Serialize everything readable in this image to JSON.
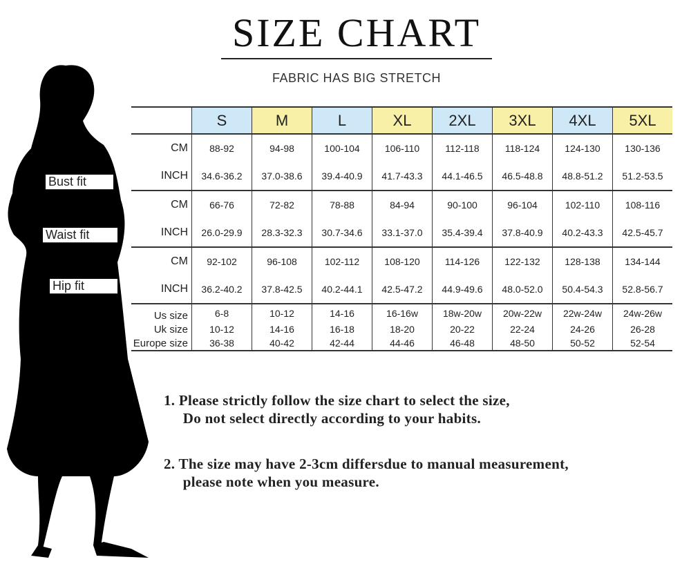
{
  "title": "SIZE CHART",
  "subtitle": "FABRIC HAS BIG STRETCH",
  "fit_labels": {
    "bust": "Bust fit",
    "waist": "Waist fit",
    "hip": "Hip fit"
  },
  "sizes": [
    "S",
    "M",
    "L",
    "XL",
    "2XL",
    "3XL",
    "4XL",
    "5XL"
  ],
  "header_colors": {
    "blue": "#cfe8f8",
    "yellow": "#f7f0a6"
  },
  "rows": [
    {
      "label": "CM",
      "values": [
        "88-92",
        "94-98",
        "100-104",
        "106-110",
        "112-118",
        "118-124",
        "124-130",
        "130-136"
      ]
    },
    {
      "label": "INCH",
      "values": [
        "34.6-36.2",
        "37.0-38.6",
        "39.4-40.9",
        "41.7-43.3",
        "44.1-46.5",
        "46.5-48.8",
        "48.8-51.2",
        "51.2-53.5"
      ]
    },
    {
      "label": "CM",
      "values": [
        "66-76",
        "72-82",
        "78-88",
        "84-94",
        "90-100",
        "96-104",
        "102-110",
        "108-116"
      ]
    },
    {
      "label": "INCH",
      "values": [
        "26.0-29.9",
        "28.3-32.3",
        "30.7-34.6",
        "33.1-37.0",
        "35.4-39.4",
        "37.8-40.9",
        "40.2-43.3",
        "42.5-45.7"
      ]
    },
    {
      "label": "CM",
      "values": [
        "92-102",
        "96-108",
        "102-112",
        "108-120",
        "114-126",
        "122-132",
        "128-138",
        "134-144"
      ]
    },
    {
      "label": "INCH",
      "values": [
        "36.2-40.2",
        "37.8-42.5",
        "40.2-44.1",
        "42.5-47.2",
        "44.9-49.6",
        "48.0-52.0",
        "50.4-54.3",
        "52.8-56.7"
      ]
    },
    {
      "label": "Us size",
      "values": [
        "6-8",
        "10-12",
        "14-16",
        "16-16w",
        "18w-20w",
        "20w-22w",
        "22w-24w",
        "24w-26w"
      ]
    },
    {
      "label": "Uk size",
      "values": [
        "10-12",
        "14-16",
        "16-18",
        "18-20",
        "20-22",
        "22-24",
        "24-26",
        "26-28"
      ]
    },
    {
      "label": "Europe size",
      "values": [
        "36-38",
        "40-42",
        "42-44",
        "44-46",
        "46-48",
        "48-50",
        "50-52",
        "52-54"
      ]
    }
  ],
  "notes": [
    "1.  Please strictly follow the size chart to select the size,",
    "     Do not select directly according to your habits.",
    "2.  The size may have 2-3cm differsdue to manual measurement,",
    "     please note when you measure."
  ]
}
